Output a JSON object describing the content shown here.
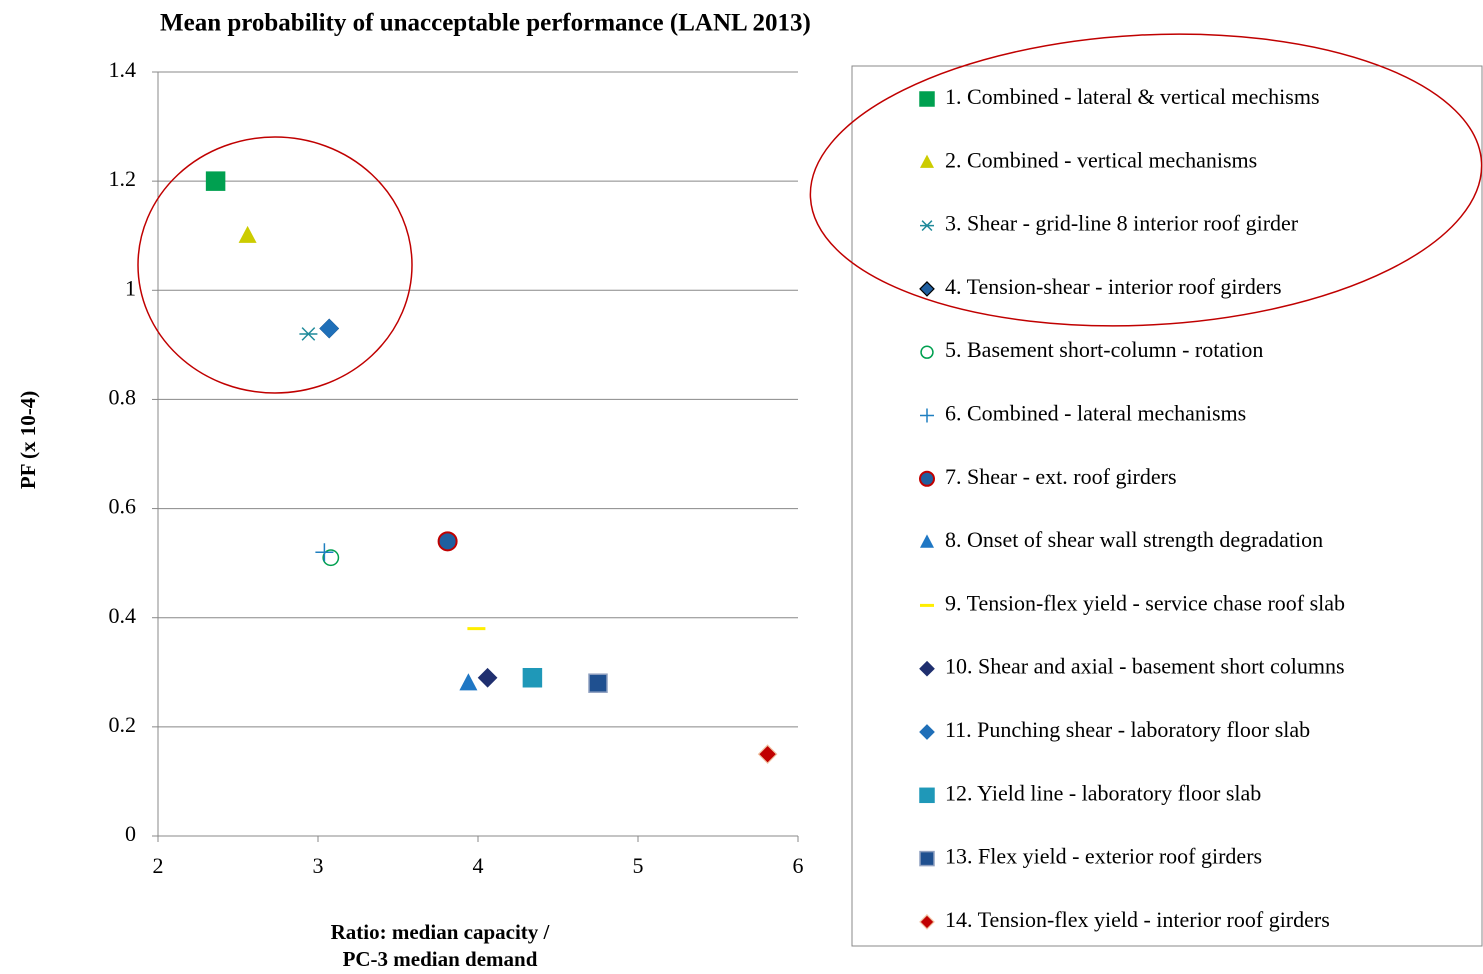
{
  "chart_data": {
    "type": "scatter",
    "title": "Mean probability of unacceptable performance (LANL 2013)",
    "xlabel": [
      "Ratio: median capacity /",
      "PC-3 median demand"
    ],
    "ylabel": "PF (x 10-4)",
    "xlim": [
      2,
      6
    ],
    "xticks": [
      2,
      3,
      4,
      5,
      6
    ],
    "ylim": [
      0,
      1.4
    ],
    "yticks": [
      0,
      0.2,
      0.4,
      0.6,
      0.8,
      1,
      1.2,
      1.4
    ],
    "grid": true,
    "legend": "right",
    "series": [
      {
        "name": "1. Combined - lateral & vertical mechisms",
        "marker": "square",
        "color": "#00a050",
        "x": [
          2.36
        ],
        "values": [
          1.2
        ]
      },
      {
        "name": "2.  Combined - vertical mechanisms",
        "marker": "triangle",
        "color": "#cccc00",
        "x": [
          2.56
        ],
        "values": [
          1.1
        ]
      },
      {
        "name": "3. Shear - grid-line 8 interior roof girder",
        "marker": "asterisk",
        "color": "#1f8a9a",
        "x": [
          2.94
        ],
        "values": [
          0.92
        ]
      },
      {
        "name": "4. Tension-shear - interior roof girders",
        "marker": "diamond",
        "color": "#1f5fa0",
        "edge": "#000000",
        "x": [
          3.07
        ],
        "values": [
          0.93
        ]
      },
      {
        "name": "5. Basement short-column  - rotation",
        "marker": "open-circle",
        "color": "#00a050",
        "x": [
          3.08
        ],
        "values": [
          0.51
        ]
      },
      {
        "name": "6. Combined - lateral mechanisms",
        "marker": "plus",
        "color": "#1f7fc0",
        "x": [
          3.04
        ],
        "values": [
          0.52
        ]
      },
      {
        "name": "7. Shear - ext. roof girders",
        "marker": "circle",
        "color": "#1f5f9f",
        "edge": "#c00000",
        "x": [
          3.81
        ],
        "values": [
          0.54
        ]
      },
      {
        "name": "8. Onset of shear wall strength degradation",
        "marker": "triangle",
        "color": "#1f77c4",
        "x": [
          3.94
        ],
        "values": [
          0.28
        ]
      },
      {
        "name": "9. Tension-flex yield - service chase roof slab",
        "marker": "dash",
        "color": "#ffee00",
        "x": [
          3.99
        ],
        "values": [
          0.38
        ]
      },
      {
        "name": "10. Shear and axial - basement short columns",
        "marker": "diamond",
        "color": "#1f2f6f",
        "x": [
          4.06
        ],
        "values": [
          0.29
        ]
      },
      {
        "name": "11. Punching shear - laboratory floor slab",
        "marker": "diamond",
        "color": "#1f6fb8",
        "x": [
          3.07
        ],
        "values": [
          0.93
        ]
      },
      {
        "name": "12. Yield line - laboratory floor slab",
        "marker": "square",
        "color": "#1f98b8",
        "x": [
          4.34
        ],
        "values": [
          0.29
        ]
      },
      {
        "name": "13. Flex yield - exterior roof girders",
        "marker": "square",
        "color": "#1f5090",
        "edge": "#8fa0c0",
        "x": [
          4.75
        ],
        "values": [
          0.28
        ]
      },
      {
        "name": "14. Tension-flex yield - interior roof girders",
        "marker": "diamond",
        "color": "#c00000",
        "edge": "#f0c0a0",
        "x": [
          5.81
        ],
        "values": [
          0.15
        ]
      }
    ]
  }
}
